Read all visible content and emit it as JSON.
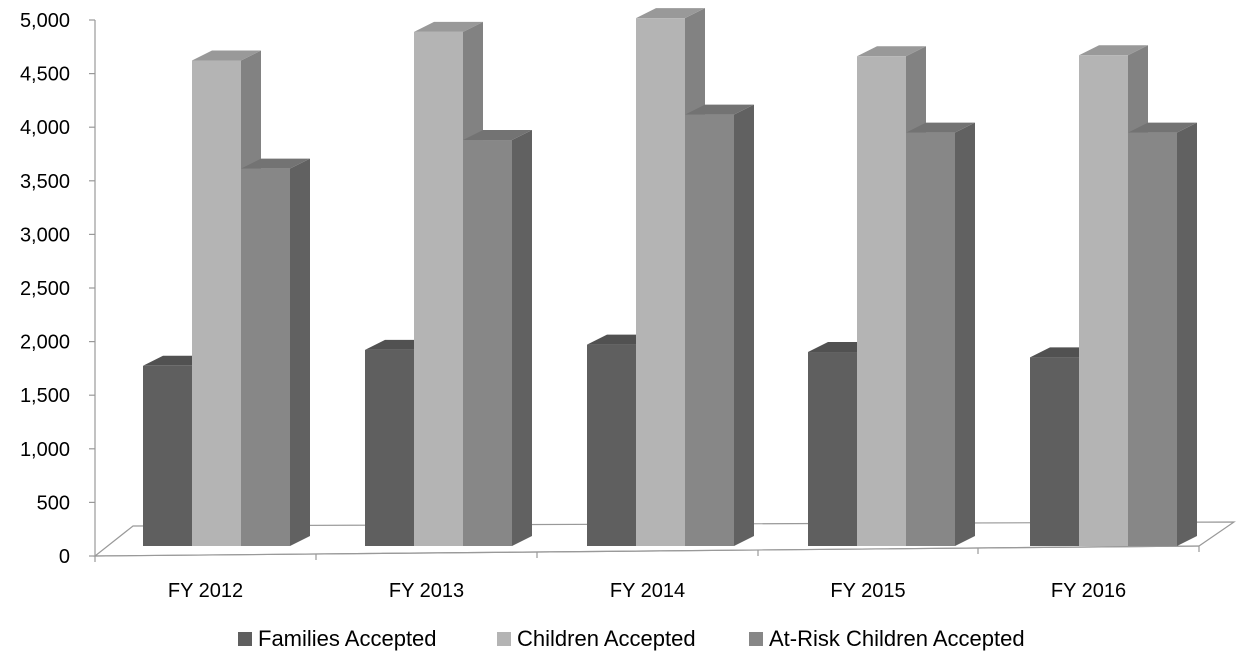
{
  "chart_data": {
    "type": "bar",
    "categories": [
      "FY 2012",
      "FY 2013",
      "FY 2014",
      "FY 2015",
      "FY 2016"
    ],
    "series": [
      {
        "name": "Families Accepted",
        "values": [
          1700,
          1850,
          1900,
          1830,
          1780
        ],
        "color": "#5f5f5f"
      },
      {
        "name": "Children Accepted",
        "values": [
          4580,
          4850,
          4980,
          4620,
          4630
        ],
        "color": "#b4b4b4"
      },
      {
        "name": "At-Risk Children Accepted",
        "values": [
          3560,
          3830,
          4070,
          3900,
          3900
        ],
        "color": "#878787"
      }
    ],
    "yticks": [
      "0",
      "500",
      "1,000",
      "1,500",
      "2,000",
      "2,500",
      "3,000",
      "3,500",
      "4,000",
      "4,500",
      "5,000"
    ],
    "ylim": [
      0,
      5000
    ],
    "grid": false,
    "legend_position": "bottom",
    "style": "3d-clustered-column"
  }
}
